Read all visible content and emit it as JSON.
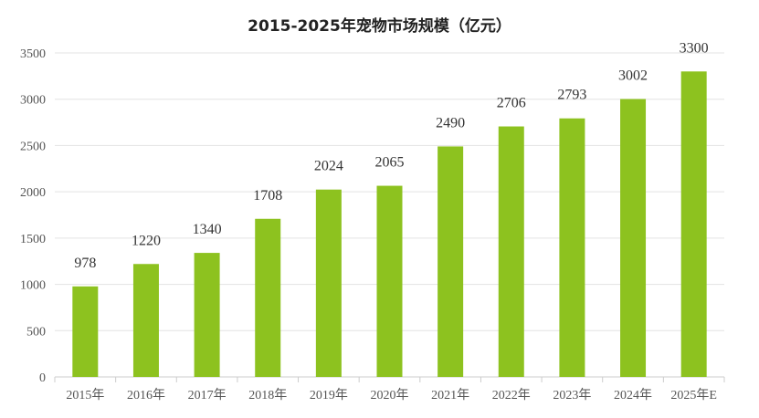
{
  "chart_data": {
    "type": "bar",
    "title": "2015-2025年宠物市场规模（亿元）",
    "categories": [
      "2015年",
      "2016年",
      "2017年",
      "2018年",
      "2019年",
      "2020年",
      "2021年",
      "2022年",
      "2023年",
      "2024年",
      "2025年E"
    ],
    "values": [
      978,
      1220,
      1340,
      1708,
      2024,
      2065,
      2490,
      2706,
      2793,
      3002,
      3300
    ],
    "ylim": [
      0,
      3500
    ],
    "yticks": [
      0,
      500,
      1000,
      1500,
      2000,
      2500,
      3000,
      3500
    ],
    "xlabel": "",
    "ylabel": "",
    "grid": true,
    "bar_color": "#8dc21f",
    "grid_color": "#e3e3e3"
  }
}
